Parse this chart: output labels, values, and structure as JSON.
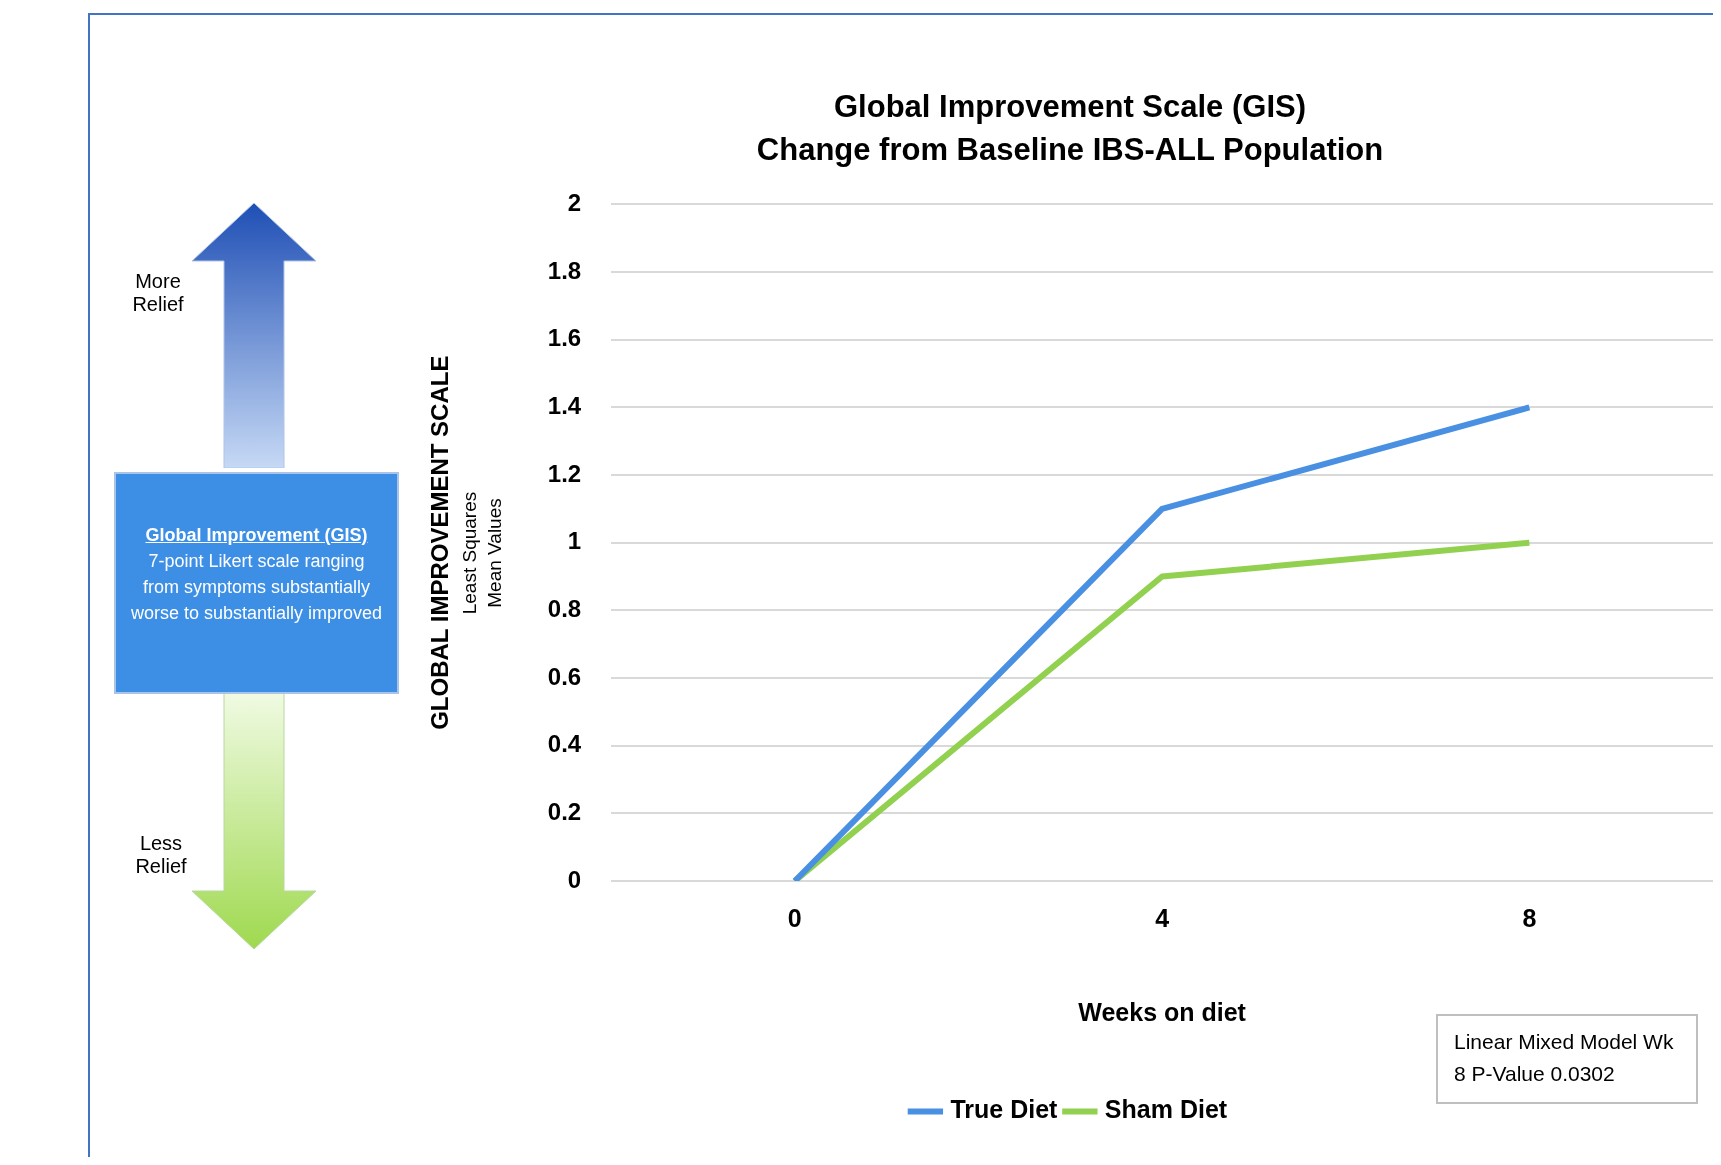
{
  "chart_data": {
    "type": "line",
    "title": "Global Improvement Scale (GIS)",
    "subtitle": "Change from Baseline IBS-ALL Population",
    "xlabel": "Weeks on diet",
    "ylabel": "GLOBAL IMPROVEMENT SCALE",
    "categories": [
      "0",
      "4",
      "8"
    ],
    "series": [
      {
        "name": "True Diet",
        "color": "#4a90e2",
        "values": [
          0,
          1.1,
          1.4
        ]
      },
      {
        "name": "Sham Diet",
        "color": "#92d050",
        "values": [
          0,
          0.9,
          1.0
        ]
      }
    ],
    "ylim": [
      0,
      2
    ],
    "yticks": [
      0,
      0.2,
      0.4,
      0.6,
      0.8,
      1,
      1.2,
      1.4,
      1.6,
      1.8,
      2
    ],
    "grid": "y",
    "legend": "bottom",
    "marker": "none",
    "line_style": "solid",
    "annotations": [
      "More Relief",
      "Less Relief",
      "Global Improvement (GIS)",
      "7-point Likert scale ranging from symptoms substantially worse to substantially improved",
      "Least Squares Mean Values",
      "Linear Mixed Model Wk 8 P-Value 0.0302"
    ]
  }
}
